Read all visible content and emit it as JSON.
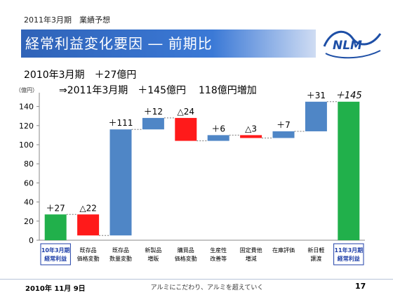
{
  "header": {
    "subtitle": "2011年3月期　業績予想",
    "title": "経常利益変化要因 ― 前期比",
    "logo_text": "NLM"
  },
  "summary": {
    "line1": "2010年3月期　＋27億円",
    "line2_part1": "⇒2011年3月期　＋145億円",
    "line2_part2": "118億円増加"
  },
  "chart_data": {
    "type": "bar",
    "subtype": "waterfall",
    "unit_label": "（億円）",
    "ylim": [
      0,
      150
    ],
    "yticks": [
      0,
      20,
      40,
      60,
      80,
      100,
      120,
      140
    ],
    "grid": false,
    "categories": [
      [
        "10年3月期",
        "経常利益"
      ],
      [
        "既存品",
        "価格変動"
      ],
      [
        "既存品",
        "数量変動"
      ],
      [
        "新製品",
        "増販"
      ],
      [
        "購買品",
        "価格変動"
      ],
      [
        "生産性",
        "改善等"
      ],
      [
        "固定費他",
        "増減"
      ],
      [
        "在庫評価"
      ],
      [
        "新日軽",
        "譲渡"
      ],
      [
        "11年3月期",
        "経常利益"
      ]
    ],
    "bars": [
      {
        "kind": "total",
        "start": 0,
        "end": 27,
        "label": "＋27",
        "color": "#21b04b"
      },
      {
        "kind": "decrease",
        "start": 27,
        "end": 5,
        "label": "△22",
        "color": "#ff1a1a"
      },
      {
        "kind": "increase",
        "start": 5,
        "end": 116,
        "label": "＋111",
        "color": "#4f86c6"
      },
      {
        "kind": "increase",
        "start": 116,
        "end": 128,
        "label": "＋12",
        "color": "#4f86c6"
      },
      {
        "kind": "decrease",
        "start": 128,
        "end": 104,
        "label": "△24",
        "color": "#ff1a1a"
      },
      {
        "kind": "increase",
        "start": 104,
        "end": 110,
        "label": "＋6",
        "color": "#4f86c6"
      },
      {
        "kind": "decrease",
        "start": 110,
        "end": 107,
        "label": "△3",
        "color": "#ff1a1a"
      },
      {
        "kind": "increase",
        "start": 107,
        "end": 114,
        "label": "＋7",
        "color": "#4f86c6"
      },
      {
        "kind": "increase",
        "start": 114,
        "end": 145,
        "label": "＋31",
        "color": "#4f86c6"
      },
      {
        "kind": "total",
        "start": 0,
        "end": 145,
        "label": "＋145",
        "color": "#21b04b"
      }
    ],
    "highlight_categories": [
      0,
      9
    ],
    "highlight_color": "#1f3fa8"
  },
  "footer": {
    "date": "2010年 11月 9日",
    "slogan": "アルミにこだわり、アルミを超えていく",
    "page": "17"
  }
}
